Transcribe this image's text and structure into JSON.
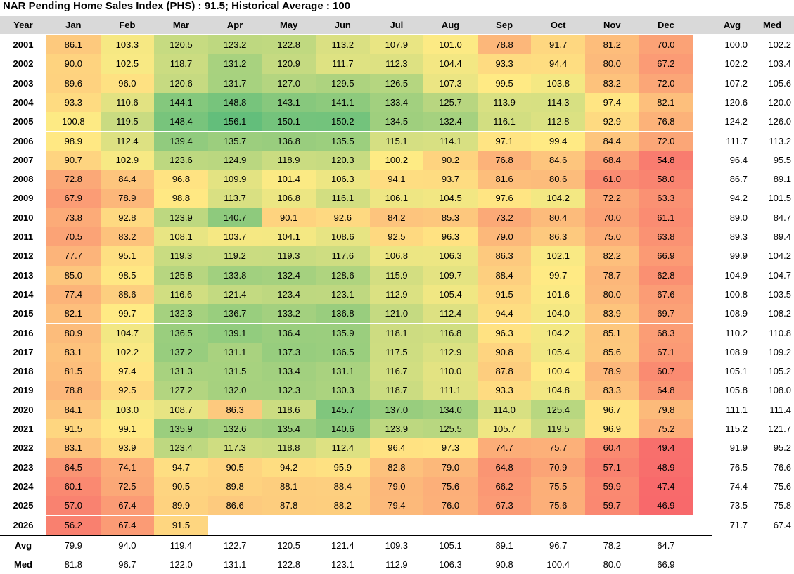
{
  "title": "NAR Pending Home Sales Index (PHS) : 91.5; Historical Average : 100",
  "chart_data": {
    "type": "heatmap",
    "title": "NAR Pending Home Sales Index (PHS) : 91.5; Historical Average : 100",
    "corner_label": "Year",
    "months": [
      "Jan",
      "Feb",
      "Mar",
      "Apr",
      "May",
      "Jun",
      "Jul",
      "Aug",
      "Sep",
      "Oct",
      "Nov",
      "Dec"
    ],
    "summary_columns": [
      "Avg",
      "Med"
    ],
    "rows": [
      {
        "year": "2001",
        "values": [
          86.1,
          103.3,
          120.5,
          123.2,
          122.8,
          113.2,
          107.9,
          101.0,
          78.8,
          91.7,
          81.2,
          70.0
        ],
        "avg": 100.0,
        "med": 102.2
      },
      {
        "year": "2002",
        "values": [
          90.0,
          102.5,
          118.7,
          131.2,
          120.9,
          111.7,
          112.3,
          104.4,
          93.3,
          94.4,
          80.0,
          67.2
        ],
        "avg": 102.2,
        "med": 103.4
      },
      {
        "year": "2003",
        "values": [
          89.6,
          96.0,
          120.6,
          131.7,
          127.0,
          129.5,
          126.5,
          107.3,
          99.5,
          103.8,
          83.2,
          72.0
        ],
        "avg": 107.2,
        "med": 105.6
      },
      {
        "year": "2004",
        "values": [
          93.3,
          110.6,
          144.1,
          148.8,
          143.1,
          141.1,
          133.4,
          125.7,
          113.9,
          114.3,
          97.4,
          82.1
        ],
        "avg": 120.6,
        "med": 120.0
      },
      {
        "year": "2005",
        "values": [
          100.8,
          119.5,
          148.4,
          156.1,
          150.1,
          150.2,
          134.5,
          132.4,
          116.1,
          112.8,
          92.9,
          76.8
        ],
        "avg": 124.2,
        "med": 126.0
      },
      {
        "year": "2006",
        "values": [
          98.9,
          112.4,
          139.4,
          135.7,
          136.8,
          135.5,
          115.1,
          114.1,
          97.1,
          99.4,
          84.4,
          72.0
        ],
        "avg": 111.7,
        "med": 113.2
      },
      {
        "year": "2007",
        "values": [
          90.7,
          102.9,
          123.6,
          124.9,
          118.9,
          120.3,
          100.2,
          90.2,
          76.8,
          84.6,
          68.4,
          54.8
        ],
        "avg": 96.4,
        "med": 95.5
      },
      {
        "year": "2008",
        "values": [
          72.8,
          84.4,
          96.8,
          109.9,
          101.4,
          106.3,
          94.1,
          93.7,
          81.6,
          80.6,
          61.0,
          58.0
        ],
        "avg": 86.7,
        "med": 89.1
      },
      {
        "year": "2009",
        "values": [
          67.9,
          78.9,
          98.8,
          113.7,
          106.8,
          116.1,
          106.1,
          104.5,
          97.6,
          104.2,
          72.2,
          63.3
        ],
        "avg": 94.2,
        "med": 101.5
      },
      {
        "year": "2010",
        "values": [
          73.8,
          92.8,
          123.9,
          140.7,
          90.1,
          92.6,
          84.2,
          85.3,
          73.2,
          80.4,
          70.0,
          61.1
        ],
        "avg": 89.0,
        "med": 84.7
      },
      {
        "year": "2011",
        "values": [
          70.5,
          83.2,
          108.1,
          103.7,
          104.1,
          108.6,
          92.5,
          96.3,
          79.0,
          86.3,
          75.0,
          63.8
        ],
        "avg": 89.3,
        "med": 89.4
      },
      {
        "year": "2012",
        "values": [
          77.7,
          95.1,
          119.3,
          119.2,
          119.3,
          117.6,
          106.8,
          106.3,
          86.3,
          102.1,
          82.2,
          66.9
        ],
        "avg": 99.9,
        "med": 104.2
      },
      {
        "year": "2013",
        "values": [
          85.0,
          98.5,
          125.8,
          133.8,
          132.4,
          128.6,
          115.9,
          109.7,
          88.4,
          99.7,
          78.7,
          62.8
        ],
        "avg": 104.9,
        "med": 104.7
      },
      {
        "year": "2014",
        "values": [
          77.4,
          88.6,
          116.6,
          121.4,
          123.4,
          123.1,
          112.9,
          105.4,
          91.5,
          101.6,
          80.0,
          67.6
        ],
        "avg": 100.8,
        "med": 103.5
      },
      {
        "year": "2015",
        "values": [
          82.1,
          99.7,
          132.3,
          136.7,
          133.2,
          136.8,
          121.0,
          112.4,
          94.4,
          104.0,
          83.9,
          69.7
        ],
        "avg": 108.9,
        "med": 108.2
      },
      {
        "year": "2016",
        "values": [
          80.9,
          104.7,
          136.5,
          139.1,
          136.4,
          135.9,
          118.1,
          116.8,
          96.3,
          104.2,
          85.1,
          68.3
        ],
        "avg": 110.2,
        "med": 110.8
      },
      {
        "year": "2017",
        "values": [
          83.1,
          102.2,
          137.2,
          131.1,
          137.3,
          136.5,
          117.5,
          112.9,
          90.8,
          105.4,
          85.6,
          67.1
        ],
        "avg": 108.9,
        "med": 109.2
      },
      {
        "year": "2018",
        "values": [
          81.5,
          97.4,
          131.3,
          131.5,
          133.4,
          131.1,
          116.7,
          110.0,
          87.8,
          100.4,
          78.9,
          60.7
        ],
        "avg": 105.1,
        "med": 105.2
      },
      {
        "year": "2019",
        "values": [
          78.8,
          92.5,
          127.2,
          132.0,
          132.3,
          130.3,
          118.7,
          111.1,
          93.3,
          104.8,
          83.3,
          64.8
        ],
        "avg": 105.8,
        "med": 108.0
      },
      {
        "year": "2020",
        "values": [
          84.1,
          103.0,
          108.7,
          86.3,
          118.6,
          145.7,
          137.0,
          134.0,
          114.0,
          125.4,
          96.7,
          79.8
        ],
        "avg": 111.1,
        "med": 111.4
      },
      {
        "year": "2021",
        "values": [
          91.5,
          99.1,
          135.9,
          132.6,
          135.4,
          140.6,
          123.9,
          125.5,
          105.7,
          119.5,
          96.9,
          75.2
        ],
        "avg": 115.2,
        "med": 121.7
      },
      {
        "year": "2022",
        "values": [
          83.1,
          93.9,
          123.4,
          117.3,
          118.8,
          112.4,
          96.4,
          97.3,
          74.7,
          75.7,
          60.4,
          49.4
        ],
        "avg": 91.9,
        "med": 95.2
      },
      {
        "year": "2023",
        "values": [
          64.5,
          74.1,
          94.7,
          90.5,
          94.2,
          95.9,
          82.8,
          79.0,
          64.8,
          70.9,
          57.1,
          48.9
        ],
        "avg": 76.5,
        "med": 76.6
      },
      {
        "year": "2024",
        "values": [
          60.1,
          72.5,
          90.5,
          89.8,
          88.1,
          88.4,
          79.0,
          75.6,
          66.2,
          75.5,
          59.9,
          47.4
        ],
        "avg": 74.4,
        "med": 75.6
      },
      {
        "year": "2025",
        "values": [
          57.0,
          67.4,
          89.9,
          86.6,
          87.8,
          88.2,
          79.4,
          76.0,
          67.3,
          75.6,
          59.7,
          46.9
        ],
        "avg": 73.5,
        "med": 75.8
      },
      {
        "year": "2026",
        "values": [
          56.2,
          67.4,
          91.5,
          null,
          null,
          null,
          null,
          null,
          null,
          null,
          null,
          null
        ],
        "avg": 71.7,
        "med": 67.4
      }
    ],
    "footer_rows": [
      {
        "label": "Avg",
        "values": [
          79.9,
          94.0,
          119.4,
          122.7,
          120.5,
          121.4,
          109.3,
          105.1,
          89.1,
          96.7,
          78.2,
          64.7
        ]
      },
      {
        "label": "Med",
        "values": [
          81.8,
          96.7,
          122.0,
          131.1,
          122.8,
          123.1,
          112.9,
          106.3,
          90.8,
          100.4,
          80.0,
          66.9
        ]
      }
    ],
    "color_scale": {
      "low": "#f8696b",
      "mid": "#ffeb84",
      "high": "#63be7b"
    }
  }
}
